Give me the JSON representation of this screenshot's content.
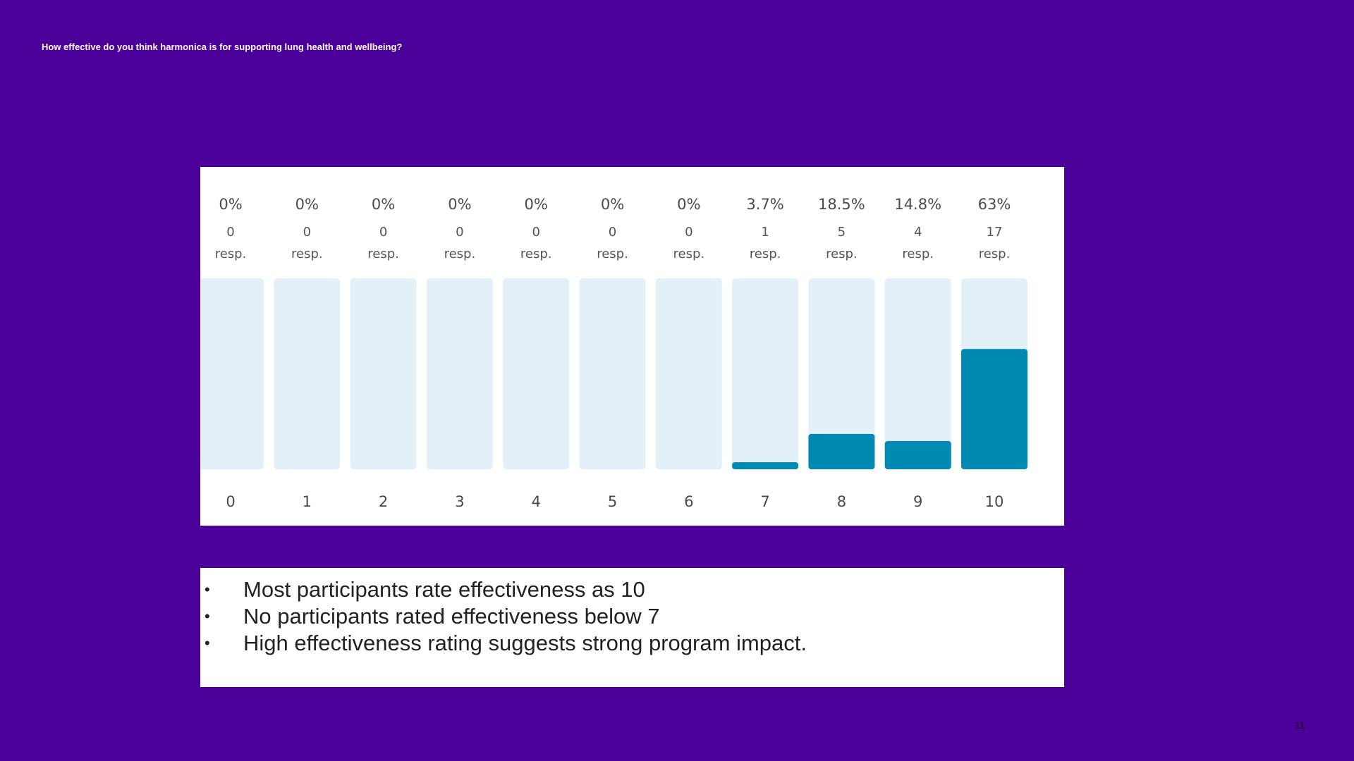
{
  "slide": {
    "title": "How effective do you think harmonica is for supporting lung health and wellbeing?",
    "page_number": "11"
  },
  "colors": {
    "background": "#4b0099",
    "bar_track": "#e3f0f7",
    "bar_fill": "#008ab2",
    "panel": "#ffffff"
  },
  "chart_data": {
    "type": "bar",
    "categories": [
      "0",
      "1",
      "2",
      "3",
      "4",
      "5",
      "6",
      "7",
      "8",
      "9",
      "10"
    ],
    "percent_labels": [
      "0%",
      "0%",
      "0%",
      "0%",
      "0%",
      "0%",
      "0%",
      "3.7%",
      "18.5%",
      "14.8%",
      "63%"
    ],
    "values": [
      0,
      0,
      0,
      0,
      0,
      0,
      0,
      3.7,
      18.5,
      14.8,
      63
    ],
    "responses": [
      0,
      0,
      0,
      0,
      0,
      0,
      0,
      1,
      5,
      4,
      17
    ],
    "resp_unit": "resp.",
    "ylim": [
      0,
      100
    ],
    "title": "",
    "xlabel": "",
    "ylabel": ""
  },
  "notes": {
    "bullets": [
      "Most participants rate effectiveness as 10",
      "No participants rated effectiveness below 7",
      "High effectiveness rating suggests strong program impact."
    ]
  }
}
